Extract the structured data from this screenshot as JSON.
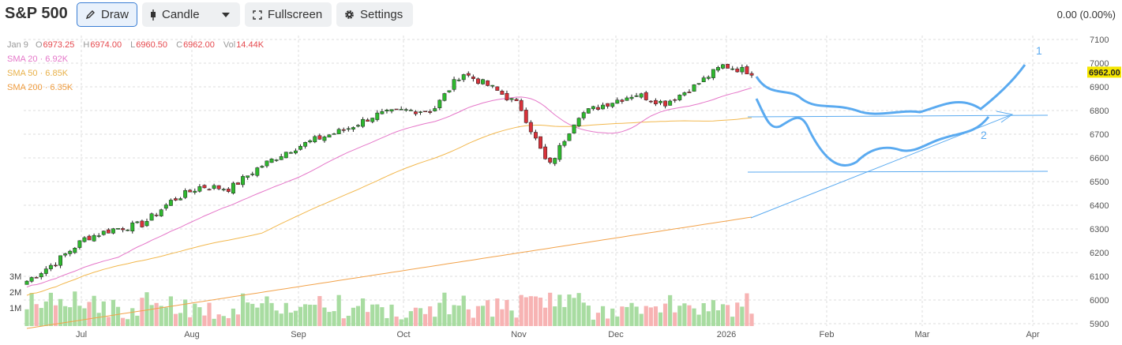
{
  "toolbar": {
    "symbol": "S&P 500",
    "draw_label": "Draw",
    "candle_label": "Candle",
    "fullscreen_label": "Fullscreen",
    "settings_label": "Settings",
    "change_text": "0.00 (0.00%)"
  },
  "legend": {
    "date": "Jan 9",
    "o_key": "O",
    "o_val": "6973.25",
    "h_key": "H",
    "h_val": "6974.00",
    "l_key": "L",
    "l_val": "6960.50",
    "c_key": "C",
    "c_val": "6962.00",
    "vol_key": "Vol",
    "vol_val": "14.44K",
    "sma20": "SMA 20 · 6.92K",
    "sma50": "SMA 50 · 6.85K",
    "sma200": "SMA 200 · 6.35K"
  },
  "colors": {
    "up": "#2eb82e",
    "down": "#d9323a",
    "sma20": "#e577c9",
    "sma50": "#f2b84e",
    "sma200": "#f2a24a",
    "drawing": "#5aaaf0",
    "last_price_bg": "#f5e600"
  },
  "chart_data": {
    "type": "candlestick",
    "price_axis": {
      "ticks": [
        "7100",
        "7000",
        "6900",
        "6800",
        "6700",
        "6600",
        "6500",
        "6400",
        "6300",
        "6200",
        "6100",
        "6000",
        "5900"
      ],
      "range": [
        5900,
        7100
      ]
    },
    "volume_axis": {
      "ticks": [
        "3M",
        "2M",
        "1M"
      ]
    },
    "time_axis": {
      "ticks": [
        "Jul",
        "Aug",
        "Sep",
        "Oct",
        "Nov",
        "Dec",
        "2026",
        "Feb",
        "Mar",
        "Apr"
      ]
    },
    "last_price": "6962.00",
    "drawing_labels": [
      "1",
      "2"
    ],
    "series": [
      {
        "name": "SMA 20"
      },
      {
        "name": "SMA 50"
      },
      {
        "name": "SMA 200"
      }
    ],
    "path_anchors": [
      [
        6080,
        6160,
        6260,
        6300,
        6320,
        6420,
        6480,
        6470,
        6560,
        6630,
        6680,
        6720,
        6780,
        6800,
        6800,
        6960,
        6900,
        6820,
        6560,
        6780,
        6830,
        6870,
        6830,
        6900,
        6990,
        6962
      ]
    ]
  }
}
